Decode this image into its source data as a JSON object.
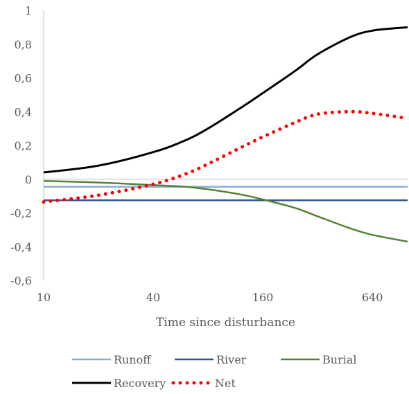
{
  "chart_data": {
    "type": "line",
    "title": "",
    "xlabel": "Time since disturbance",
    "ylabel": "",
    "x_scale": "log2",
    "xlim": [
      10,
      1000
    ],
    "ylim": [
      -0.6,
      1
    ],
    "x_ticks": [
      10,
      40,
      160,
      640
    ],
    "x_tick_labels": [
      "10",
      "40",
      "160",
      "640"
    ],
    "y_ticks": [
      -0.6,
      -0.4,
      -0.2,
      0,
      0.2,
      0.4,
      0.6,
      0.8,
      1
    ],
    "y_tick_labels": [
      "-0,6",
      "-0,4",
      "-0,2",
      "0",
      "0,2",
      "0,4",
      "0,6",
      "0,8",
      "1"
    ],
    "grid": false,
    "legend_position": "bottom",
    "series": [
      {
        "name": "Runoff",
        "color": "#8eaadb",
        "style": "solid",
        "x": [
          10,
          20,
          40,
          80,
          160,
          320,
          640,
          1000
        ],
        "y": [
          -0.045,
          -0.045,
          -0.045,
          -0.045,
          -0.045,
          -0.045,
          -0.045,
          -0.045
        ]
      },
      {
        "name": "River",
        "color": "#2f5597",
        "style": "solid",
        "x": [
          10,
          20,
          40,
          80,
          160,
          320,
          640,
          1000
        ],
        "y": [
          -0.125,
          -0.125,
          -0.125,
          -0.125,
          -0.125,
          -0.125,
          -0.125,
          -0.125
        ]
      },
      {
        "name": "Burial",
        "color": "#548235",
        "style": "solid",
        "x": [
          10,
          20,
          40,
          60,
          80,
          120,
          160,
          240,
          320,
          480,
          640,
          1000
        ],
        "y": [
          -0.01,
          -0.02,
          -0.035,
          -0.045,
          -0.06,
          -0.09,
          -0.12,
          -0.17,
          -0.22,
          -0.29,
          -0.33,
          -0.37
        ]
      },
      {
        "name": "Recovery",
        "color": "#000000",
        "style": "solid",
        "x": [
          10,
          20,
          40,
          60,
          80,
          120,
          160,
          240,
          320,
          480,
          640,
          1000
        ],
        "y": [
          0.04,
          0.08,
          0.16,
          0.23,
          0.3,
          0.42,
          0.51,
          0.64,
          0.74,
          0.84,
          0.88,
          0.9
        ]
      },
      {
        "name": "Net",
        "color": "#ff0000",
        "style": "dotted",
        "x": [
          10,
          20,
          40,
          60,
          80,
          120,
          160,
          240,
          320,
          480,
          640,
          1000
        ],
        "y": [
          -0.135,
          -0.095,
          -0.03,
          0.03,
          0.09,
          0.185,
          0.25,
          0.335,
          0.385,
          0.4,
          0.39,
          0.36
        ]
      }
    ]
  }
}
